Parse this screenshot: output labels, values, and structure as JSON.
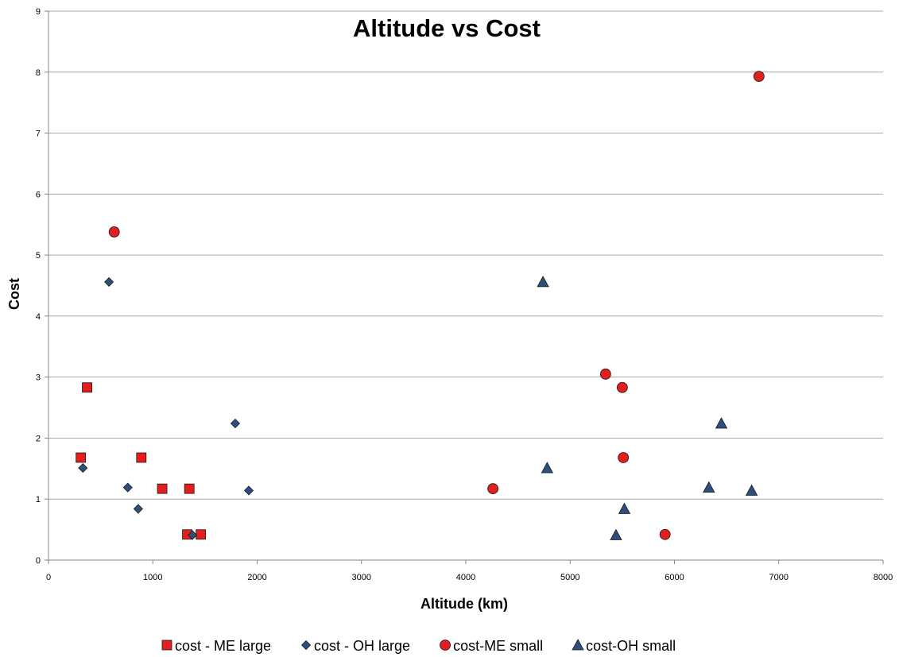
{
  "chart_data": {
    "type": "scatter",
    "title": "Altitude vs Cost",
    "xlabel": "Altitude (km)",
    "ylabel": "Cost",
    "xlim": [
      0,
      8000
    ],
    "ylim": [
      0,
      9
    ],
    "x_ticks": [
      0,
      1000,
      2000,
      3000,
      4000,
      5000,
      6000,
      7000,
      8000
    ],
    "y_ticks": [
      0,
      1,
      2,
      3,
      4,
      5,
      6,
      7,
      8,
      9
    ],
    "grid": "horizontal",
    "legend_position": "bottom",
    "series": [
      {
        "name": "cost - ME large",
        "marker": "square",
        "color": "#e31e1e",
        "points": [
          [
            310,
            1.68
          ],
          [
            370,
            2.83
          ],
          [
            890,
            1.68
          ],
          [
            1090,
            1.17
          ],
          [
            1330,
            0.42
          ],
          [
            1350,
            1.17
          ],
          [
            1460,
            0.42
          ]
        ]
      },
      {
        "name": "cost - OH large",
        "marker": "diamond",
        "color": "#2d4f7c",
        "points": [
          [
            330,
            1.51
          ],
          [
            580,
            4.56
          ],
          [
            760,
            1.19
          ],
          [
            860,
            0.84
          ],
          [
            1380,
            0.41
          ],
          [
            1790,
            2.24
          ],
          [
            1920,
            1.14
          ]
        ]
      },
      {
        "name": "cost-ME small",
        "marker": "circle",
        "color": "#e31e1e",
        "points": [
          [
            630,
            5.38
          ],
          [
            4260,
            1.17
          ],
          [
            5340,
            3.05
          ],
          [
            5500,
            2.83
          ],
          [
            5510,
            1.68
          ],
          [
            5910,
            0.42
          ],
          [
            6810,
            7.93
          ]
        ]
      },
      {
        "name": "cost-OH small",
        "marker": "triangle",
        "color": "#2d4f7c",
        "points": [
          [
            4740,
            4.56
          ],
          [
            4780,
            1.51
          ],
          [
            5440,
            0.41
          ],
          [
            5520,
            0.84
          ],
          [
            6330,
            1.19
          ],
          [
            6450,
            2.24
          ],
          [
            6740,
            1.14
          ]
        ]
      }
    ]
  }
}
